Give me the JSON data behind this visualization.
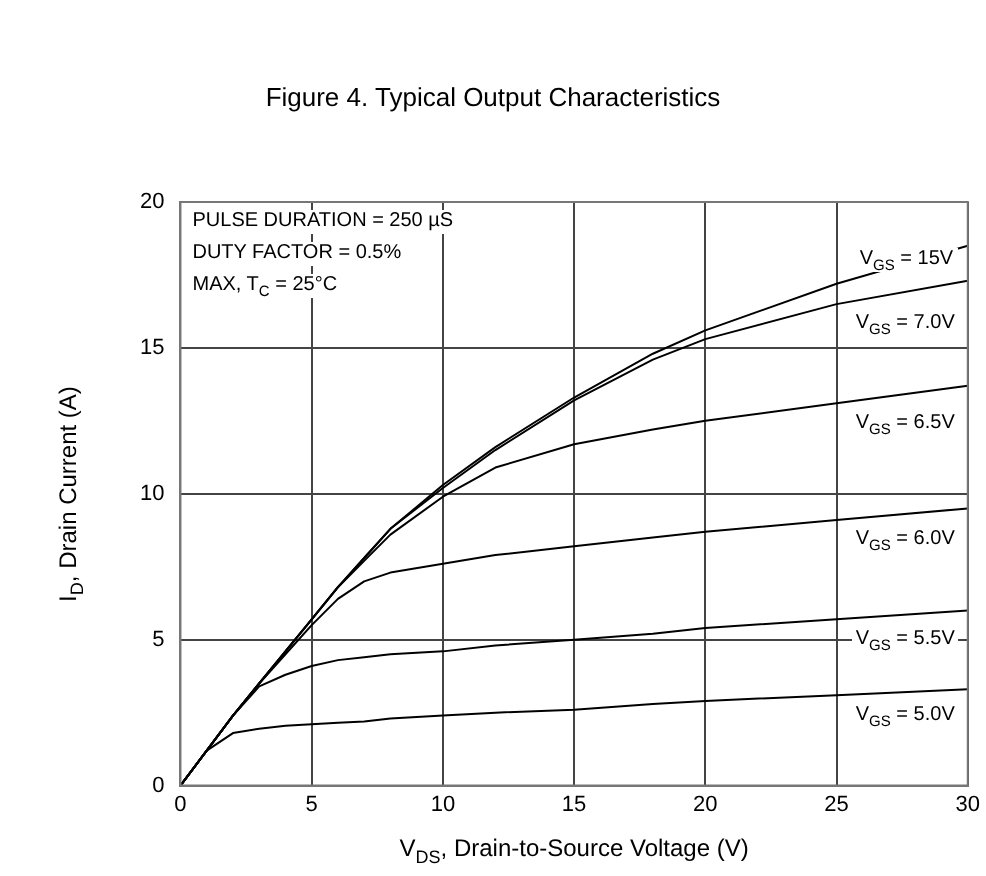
{
  "chart_data": {
    "type": "line",
    "title": "Figure 4. Typical Output Characteristics",
    "xlabel": "V$_{DS}$, Drain-to-Source Voltage (V)",
    "ylabel": "I$_{D}$, Drain Current (A)",
    "x": [
      0,
      1,
      2,
      3,
      4,
      5,
      6,
      7,
      8,
      10,
      12,
      15,
      18,
      20,
      25,
      30
    ],
    "series": [
      {
        "name": "V$_{GS}$ = 15V",
        "color": "#000000",
        "values": [
          0,
          1.2,
          2.4,
          3.5,
          4.6,
          5.7,
          6.8,
          7.8,
          8.8,
          10.3,
          11.6,
          13.3,
          14.8,
          15.6,
          17.2,
          18.5
        ]
      },
      {
        "name": "V$_{GS}$ = 7.0V",
        "color": "#000000",
        "values": [
          0,
          1.2,
          2.4,
          3.5,
          4.6,
          5.7,
          6.8,
          7.8,
          8.8,
          10.2,
          11.5,
          13.2,
          14.6,
          15.3,
          16.5,
          17.3
        ]
      },
      {
        "name": "V$_{GS}$ = 6.5V",
        "color": "#000000",
        "values": [
          0,
          1.2,
          2.4,
          3.5,
          4.6,
          5.7,
          6.8,
          7.7,
          8.6,
          9.9,
          10.9,
          11.7,
          12.2,
          12.5,
          13.1,
          13.7
        ]
      },
      {
        "name": "V$_{GS}$ = 6.0V",
        "color": "#000000",
        "values": [
          0,
          1.2,
          2.4,
          3.5,
          4.5,
          5.5,
          6.4,
          7.0,
          7.3,
          7.6,
          7.9,
          8.2,
          8.5,
          8.7,
          9.1,
          9.5
        ]
      },
      {
        "name": "V$_{GS}$ = 5.5V",
        "color": "#000000",
        "values": [
          0,
          1.2,
          2.4,
          3.4,
          3.8,
          4.1,
          4.3,
          4.4,
          4.5,
          4.6,
          4.8,
          5.0,
          5.2,
          5.4,
          5.7,
          6.0
        ]
      },
      {
        "name": "V$_{GS}$ = 5.0V",
        "color": "#000000",
        "values": [
          0,
          1.2,
          1.8,
          1.95,
          2.05,
          2.1,
          2.15,
          2.2,
          2.3,
          2.4,
          2.5,
          2.6,
          2.8,
          2.9,
          3.1,
          3.3
        ]
      }
    ],
    "xlim": [
      0,
      30
    ],
    "xticks": [
      0,
      5,
      10,
      15,
      20,
      25,
      30
    ],
    "ylim": [
      0,
      20
    ],
    "yticks": [
      0,
      5,
      10,
      15,
      20
    ],
    "annotations": [
      "PULSE DURATION = 250 µS",
      "DUTY FACTOR = 0.5%",
      "MAX, T$_{C}$ = 25°C"
    ],
    "grid": true,
    "legend": false,
    "marker": "none",
    "line_style": "solid"
  }
}
